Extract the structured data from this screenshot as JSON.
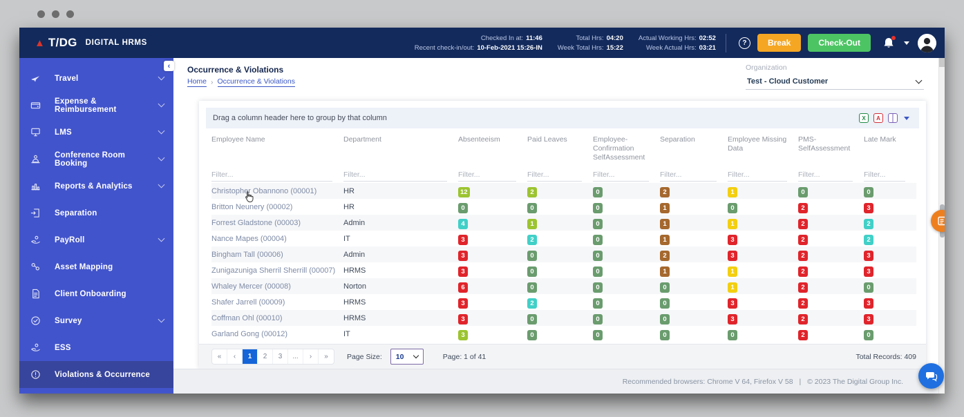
{
  "theme": {
    "navbar_bg": "#132a5c",
    "sidebar_bg": "#4254cb",
    "sidebar_active_bg": "#38459c",
    "accent_blue": "#3a57c4",
    "break_orange": "#f5a623",
    "checkout_green": "#4dc464",
    "pager_active": "#1565d8",
    "badge_lime": "#9cc430",
    "badge_green": "#6a9c6e",
    "badge_teal": "#41d0c8",
    "badge_red": "#e0242b",
    "badge_brown": "#a5682e",
    "badge_yellow": "#f3cf11"
  },
  "navbar": {
    "logo_text": "T/DG",
    "brand": "DIGITAL HRMS",
    "stat_columns": [
      [
        {
          "label": "Checked In at:",
          "value": "11:46"
        },
        {
          "label": "Recent check-in/out:",
          "value": "10-Feb-2021 15:26-IN"
        }
      ],
      [
        {
          "label": "Total Hrs:",
          "value": "04:20"
        },
        {
          "label": "Week Total Hrs:",
          "value": "15:22"
        }
      ],
      [
        {
          "label": "Actual Working Hrs:",
          "value": "02:52"
        },
        {
          "label": "Week Actual Hrs:",
          "value": "03:21"
        }
      ]
    ],
    "help_label": "?",
    "break_label": "Break",
    "checkout_label": "Check-Out"
  },
  "sidebar": {
    "collapse_label": "‹",
    "items": [
      {
        "label": "Travel",
        "icon": "travel-plane-icon",
        "expandable": true
      },
      {
        "label": "Expense & Reimbursement",
        "icon": "expense-wallet-icon",
        "expandable": true
      },
      {
        "label": "LMS",
        "icon": "lms-monitor-icon",
        "expandable": true
      },
      {
        "label": "Conference Room Booking",
        "icon": "conference-people-icon",
        "expandable": true
      },
      {
        "label": "Reports & Analytics",
        "icon": "reports-chart-icon",
        "expandable": true
      },
      {
        "label": "Separation",
        "icon": "separation-door-icon",
        "expandable": false
      },
      {
        "label": "PayRoll",
        "icon": "payroll-coins-icon",
        "expandable": true
      },
      {
        "label": "Asset Mapping",
        "icon": "asset-link-icon",
        "expandable": false
      },
      {
        "label": "Client Onboarding",
        "icon": "client-document-icon",
        "expandable": false
      },
      {
        "label": "Survey",
        "icon": "survey-check-icon",
        "expandable": true
      },
      {
        "label": "ESS",
        "icon": "ess-coins-icon",
        "expandable": false
      },
      {
        "label": "Violations & Occurrence",
        "icon": "violations-clock-icon",
        "expandable": false,
        "active": true
      }
    ]
  },
  "page": {
    "title": "Occurrence & Violations",
    "breadcrumb": {
      "home": "Home",
      "separator": "›",
      "current": "Occurrence & Violations"
    },
    "organization_label": "Organization",
    "organization_value": "Test - Cloud Customer"
  },
  "grid": {
    "group_hint": "Drag a column header here to group by that column",
    "columns": [
      "Employee Name",
      "Department",
      "Absenteeism",
      "Paid Leaves",
      "Employee-Confirmation SelfAssessment",
      "Separation",
      "Employee Missing Data",
      "PMS-SelfAssessment",
      "Late Mark"
    ],
    "filter_placeholder": "Filter...",
    "export_excel_glyph": "X",
    "export_pdf_glyph": "A",
    "rows": [
      {
        "name": "Christopher Obannono (00001)",
        "department": "HR",
        "values": [
          {
            "v": "12",
            "c": "lime"
          },
          {
            "v": "2",
            "c": "lime"
          },
          {
            "v": "0",
            "c": "green"
          },
          {
            "v": "2",
            "c": "brown"
          },
          {
            "v": "1",
            "c": "yellow"
          },
          {
            "v": "0",
            "c": "green"
          },
          {
            "v": "0",
            "c": "green"
          }
        ]
      },
      {
        "name": "Britton Neunery (00002)",
        "department": "HR",
        "values": [
          {
            "v": "0",
            "c": "green"
          },
          {
            "v": "0",
            "c": "green"
          },
          {
            "v": "0",
            "c": "green"
          },
          {
            "v": "1",
            "c": "brown"
          },
          {
            "v": "0",
            "c": "green"
          },
          {
            "v": "2",
            "c": "red"
          },
          {
            "v": "3",
            "c": "red"
          }
        ]
      },
      {
        "name": "Forrest Gladstone (00003)",
        "department": "Admin",
        "values": [
          {
            "v": "4",
            "c": "teal"
          },
          {
            "v": "1",
            "c": "lime"
          },
          {
            "v": "0",
            "c": "green"
          },
          {
            "v": "1",
            "c": "brown"
          },
          {
            "v": "1",
            "c": "yellow"
          },
          {
            "v": "2",
            "c": "red"
          },
          {
            "v": "2",
            "c": "teal"
          }
        ]
      },
      {
        "name": "Nance Mapes (00004)",
        "department": "IT",
        "values": [
          {
            "v": "3",
            "c": "red"
          },
          {
            "v": "2",
            "c": "teal"
          },
          {
            "v": "0",
            "c": "green"
          },
          {
            "v": "1",
            "c": "brown"
          },
          {
            "v": "3",
            "c": "red"
          },
          {
            "v": "2",
            "c": "red"
          },
          {
            "v": "2",
            "c": "teal"
          }
        ]
      },
      {
        "name": "Bingham Tall (00006)",
        "department": "Admin",
        "values": [
          {
            "v": "3",
            "c": "red"
          },
          {
            "v": "0",
            "c": "green"
          },
          {
            "v": "0",
            "c": "green"
          },
          {
            "v": "2",
            "c": "brown"
          },
          {
            "v": "3",
            "c": "red"
          },
          {
            "v": "2",
            "c": "red"
          },
          {
            "v": "3",
            "c": "red"
          }
        ]
      },
      {
        "name": "Zunigazuniga Sherril Sherrill (00007)",
        "department": "HRMS",
        "values": [
          {
            "v": "3",
            "c": "red"
          },
          {
            "v": "0",
            "c": "green"
          },
          {
            "v": "0",
            "c": "green"
          },
          {
            "v": "1",
            "c": "brown"
          },
          {
            "v": "1",
            "c": "yellow"
          },
          {
            "v": "2",
            "c": "red"
          },
          {
            "v": "3",
            "c": "red"
          }
        ]
      },
      {
        "name": "Whaley Mercer (00008)",
        "department": "Norton",
        "values": [
          {
            "v": "6",
            "c": "red"
          },
          {
            "v": "0",
            "c": "green"
          },
          {
            "v": "0",
            "c": "green"
          },
          {
            "v": "0",
            "c": "green"
          },
          {
            "v": "1",
            "c": "yellow"
          },
          {
            "v": "2",
            "c": "red"
          },
          {
            "v": "0",
            "c": "green"
          }
        ]
      },
      {
        "name": "Shafer Jarrell (00009)",
        "department": "HRMS",
        "values": [
          {
            "v": "3",
            "c": "red"
          },
          {
            "v": "2",
            "c": "teal"
          },
          {
            "v": "0",
            "c": "green"
          },
          {
            "v": "0",
            "c": "green"
          },
          {
            "v": "3",
            "c": "red"
          },
          {
            "v": "2",
            "c": "red"
          },
          {
            "v": "3",
            "c": "red"
          }
        ]
      },
      {
        "name": "Coffman Ohl (00010)",
        "department": "HRMS",
        "values": [
          {
            "v": "3",
            "c": "red"
          },
          {
            "v": "0",
            "c": "green"
          },
          {
            "v": "0",
            "c": "green"
          },
          {
            "v": "0",
            "c": "green"
          },
          {
            "v": "3",
            "c": "red"
          },
          {
            "v": "2",
            "c": "red"
          },
          {
            "v": "3",
            "c": "red"
          }
        ]
      },
      {
        "name": "Garland Gong (00012)",
        "department": "IT",
        "values": [
          {
            "v": "3",
            "c": "lime"
          },
          {
            "v": "0",
            "c": "green"
          },
          {
            "v": "0",
            "c": "green"
          },
          {
            "v": "0",
            "c": "green"
          },
          {
            "v": "0",
            "c": "green"
          },
          {
            "v": "2",
            "c": "red"
          },
          {
            "v": "0",
            "c": "green"
          }
        ]
      }
    ]
  },
  "pagination": {
    "buttons": [
      {
        "label": "«"
      },
      {
        "label": "‹"
      },
      {
        "label": "1",
        "active": true
      },
      {
        "label": "2"
      },
      {
        "label": "3"
      },
      {
        "label": "..."
      },
      {
        "label": "›"
      },
      {
        "label": "»"
      }
    ],
    "page_size_label": "Page Size:",
    "page_size_value": "10",
    "page_info": "Page: 1 of 41",
    "total_records": "Total Records: 409"
  },
  "footer": {
    "browsers": "Recommended browsers: Chrome V 64, Firefox V 58",
    "separator": "|",
    "copyright": "© 2023 The Digital Group Inc."
  }
}
